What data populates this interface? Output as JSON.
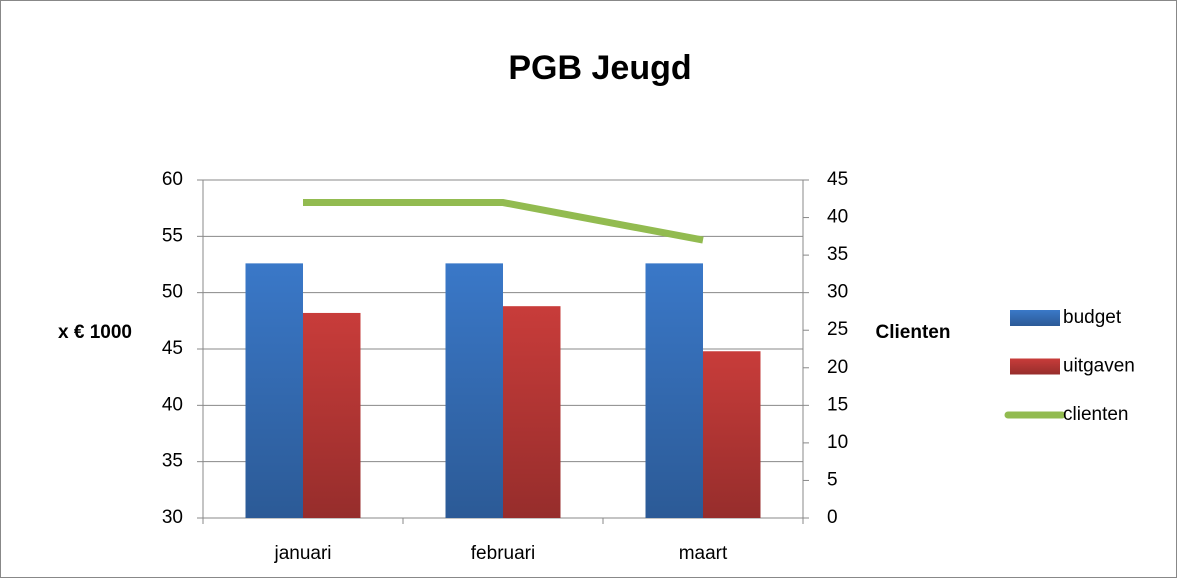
{
  "chart_data": {
    "type": "bar",
    "title": "PGB Jeugd",
    "categories": [
      "januari",
      "februari",
      "maart"
    ],
    "ylabel": "x € 1000",
    "y2label": "Clienten",
    "ylim": [
      30,
      60
    ],
    "yticks": [
      30,
      35,
      40,
      45,
      50,
      55,
      60
    ],
    "y2lim": [
      0,
      45
    ],
    "y2ticks": [
      0,
      5,
      10,
      15,
      20,
      25,
      30,
      35,
      40,
      45
    ],
    "grid": true,
    "legend": "right",
    "series": [
      {
        "name": "budget",
        "color": "#3a78c8",
        "type": "bar",
        "values": [
          52.6,
          52.6,
          52.6
        ]
      },
      {
        "name": "uitgaven",
        "color": "#c83c3a",
        "type": "bar",
        "values": [
          48.2,
          48.8,
          44.8
        ]
      },
      {
        "name": "clienten",
        "color": "#92bb50",
        "type": "line",
        "axis": "y2",
        "values": [
          42,
          42,
          37
        ]
      }
    ]
  }
}
